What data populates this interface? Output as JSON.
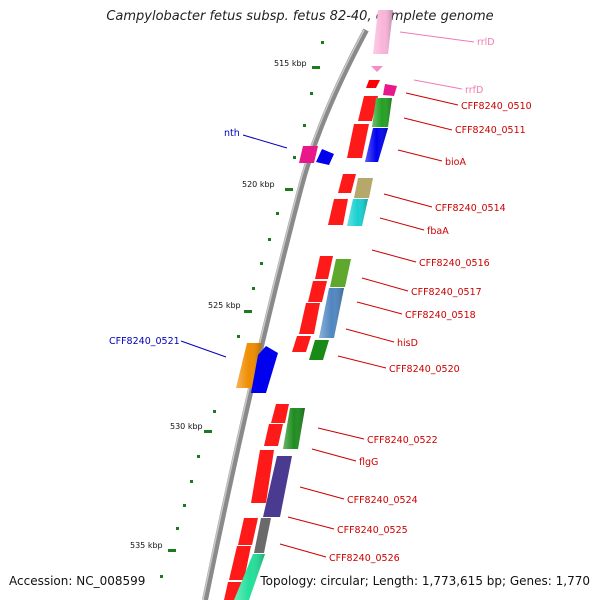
{
  "title": "Campylobacter fetus subsp. fetus 82-40, complete genome",
  "footer": {
    "accession": "Accession: NC_008599",
    "summary": "Topology: circular; Length: 1,773,615 bp; Genes: 1,770"
  },
  "colors": {
    "backbone": "#8a8a8a",
    "gene_label": "#cc0000",
    "rna_label": "#f07ab4",
    "reverse_label": "#0000bb",
    "ticks": "#1f7a1f"
  },
  "scale_labels": [
    "515 kbp",
    "520 kbp",
    "525 kbp",
    "530 kbp",
    "535 kbp"
  ],
  "forward_labels": [
    "rrlD",
    "rrfD",
    "CFF8240_0510",
    "CFF8240_0511",
    "bioA",
    "CFF8240_0514",
    "fbaA",
    "CFF8240_0516",
    "CFF8240_0517",
    "CFF8240_0518",
    "hisD",
    "CFF8240_0520",
    "CFF8240_0522",
    "flgG",
    "CFF8240_0524",
    "CFF8240_0525",
    "CFF8240_0526"
  ],
  "reverse_labels": [
    "nth",
    "CFF8240_0521"
  ]
}
